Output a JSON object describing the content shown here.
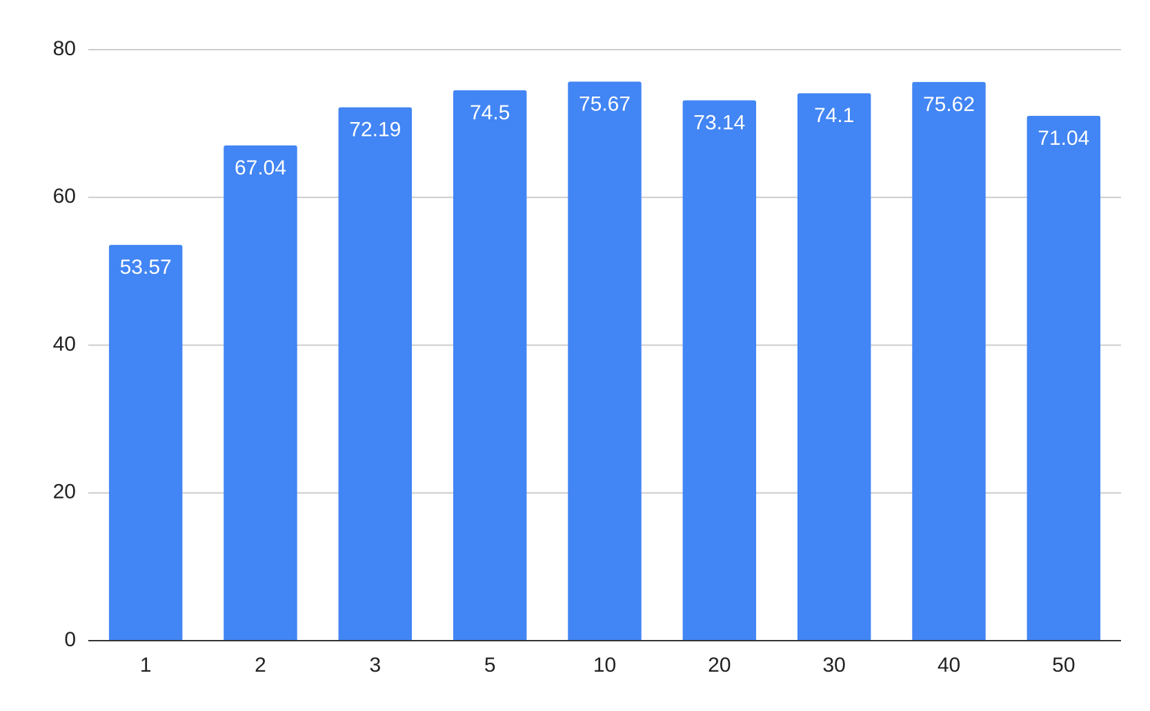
{
  "chart_data": {
    "type": "bar",
    "categories": [
      "1",
      "2",
      "3",
      "5",
      "10",
      "20",
      "30",
      "40",
      "50"
    ],
    "values": [
      53.57,
      67.04,
      72.19,
      74.5,
      75.67,
      73.14,
      74.1,
      75.62,
      71.04
    ],
    "color": "#4285f4",
    "ylim": [
      0,
      80
    ],
    "yticks": [
      0,
      20,
      40,
      60,
      80
    ],
    "grid": true
  }
}
